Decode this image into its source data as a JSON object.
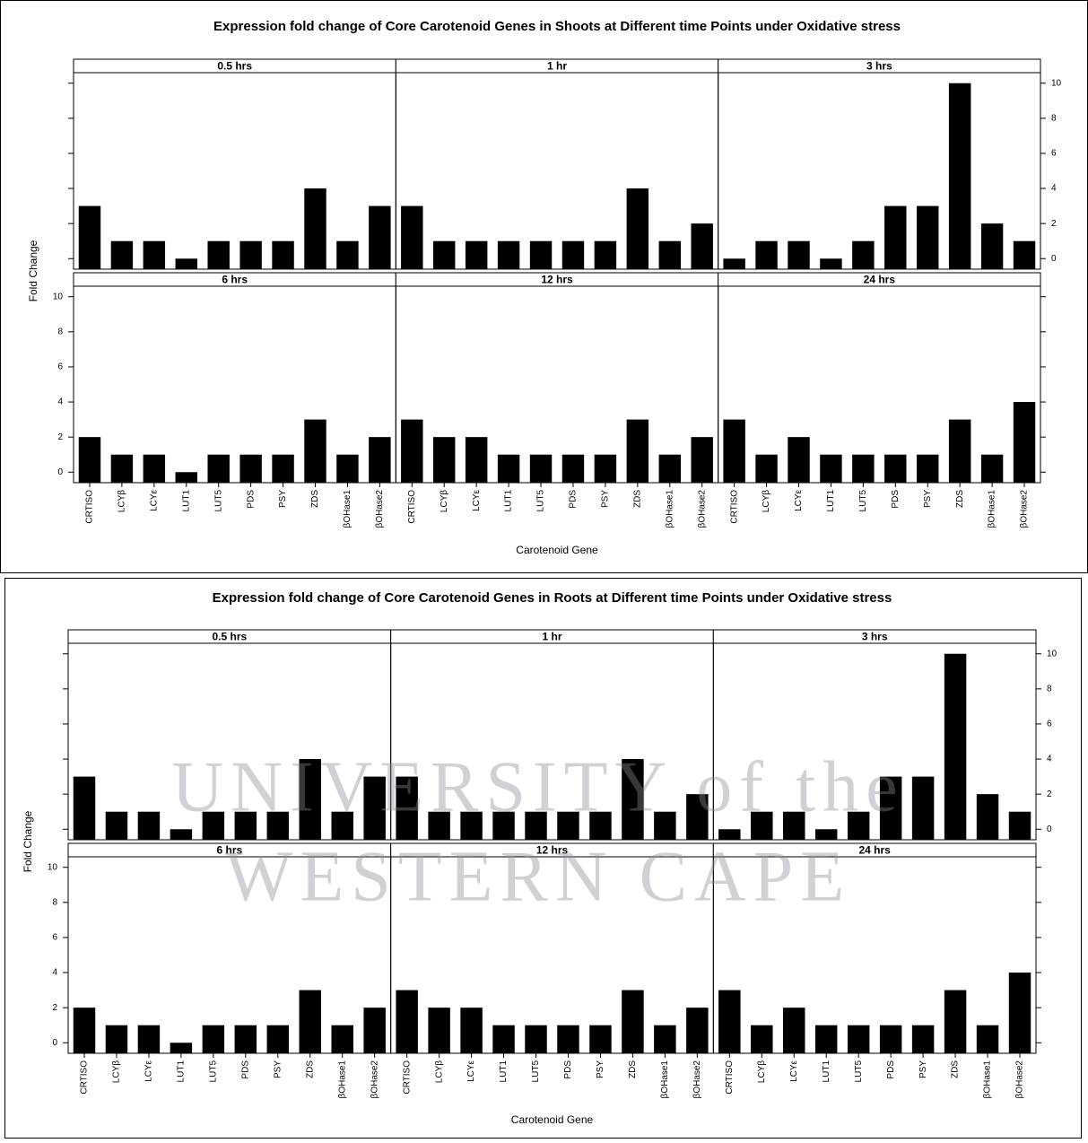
{
  "chart_data": [
    {
      "type": "bar",
      "title": "Expression fold change of Core Carotenoid Genes in Shoots at Different time Points under Oxidative stress",
      "xlabel": "Carotenoid Gene",
      "ylabel": "Fold Change",
      "categories": [
        "CRTISO",
        "LCYβ",
        "LCYε",
        "LUT1",
        "LUT5",
        "PDS",
        "PSY",
        "ZDS",
        "βOHase1",
        "βOHase2"
      ],
      "panels": [
        {
          "name": "0.5 hrs",
          "values": [
            3,
            1,
            1,
            0,
            1,
            1,
            1,
            4,
            1,
            3
          ]
        },
        {
          "name": "1 hr",
          "values": [
            3,
            1,
            1,
            1,
            1,
            1,
            1,
            4,
            1,
            2
          ]
        },
        {
          "name": "3 hrs",
          "values": [
            0,
            1,
            1,
            0,
            1,
            3,
            3,
            10,
            2,
            1
          ]
        },
        {
          "name": "6 hrs",
          "values": [
            2,
            1,
            1,
            0,
            1,
            1,
            1,
            3,
            1,
            2
          ]
        },
        {
          "name": "12 hrs",
          "values": [
            3,
            2,
            2,
            1,
            1,
            1,
            1,
            3,
            1,
            2
          ]
        },
        {
          "name": "24 hrs",
          "values": [
            3,
            1,
            2,
            1,
            1,
            1,
            1,
            3,
            1,
            4
          ]
        }
      ],
      "color": "#000000",
      "ylim": [
        -0.6,
        10.6
      ],
      "yticks": [
        0,
        2,
        4,
        6,
        8,
        10
      ]
    },
    {
      "type": "bar",
      "title": "Expression fold change of Core Carotenoid Genes in Roots at Different time Points under Oxidative stress",
      "xlabel": "Carotenoid Gene",
      "ylabel": "Fold Change",
      "categories": [
        "CRTISO",
        "LCYβ",
        "LCYε",
        "LUT1",
        "LUT5",
        "PDS",
        "PSY",
        "ZDS",
        "βOHase1",
        "βOHase2"
      ],
      "panels": [
        {
          "name": "0.5 hrs",
          "values": [
            3,
            1,
            1,
            0,
            1,
            1,
            1,
            4,
            1,
            3
          ]
        },
        {
          "name": "1 hr",
          "values": [
            3,
            1,
            1,
            1,
            1,
            1,
            1,
            4,
            1,
            2
          ]
        },
        {
          "name": "3 hrs",
          "values": [
            0,
            1,
            1,
            0,
            1,
            3,
            3,
            10,
            2,
            1
          ]
        },
        {
          "name": "6 hrs",
          "values": [
            2,
            1,
            1,
            0,
            1,
            1,
            1,
            3,
            1,
            2
          ]
        },
        {
          "name": "12 hrs",
          "values": [
            3,
            2,
            2,
            1,
            1,
            1,
            1,
            3,
            1,
            2
          ]
        },
        {
          "name": "24 hrs",
          "values": [
            3,
            1,
            2,
            1,
            1,
            1,
            1,
            3,
            1,
            4
          ]
        }
      ],
      "color": "#000000",
      "ylim": [
        -0.6,
        10.6
      ],
      "yticks": [
        0,
        2,
        4,
        6,
        8,
        10
      ]
    }
  ],
  "watermark": [
    "UNIVERSITY of the",
    "WESTERN CAPE"
  ]
}
